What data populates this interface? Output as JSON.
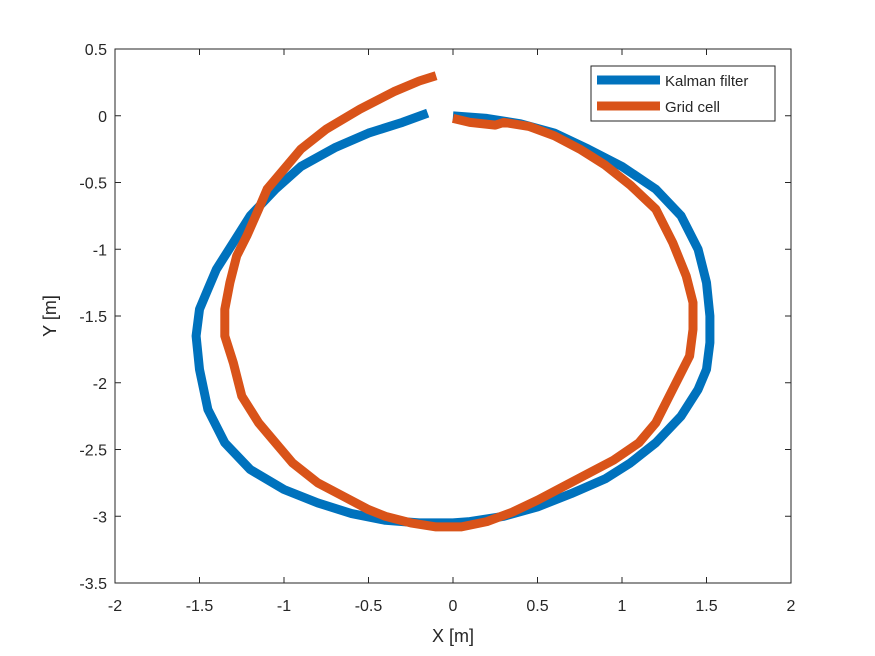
{
  "chart_data": {
    "type": "line",
    "xlabel": "X [m]",
    "ylabel": "Y [m]",
    "xlim": [
      -2,
      2
    ],
    "ylim": [
      -3.5,
      0.5
    ],
    "xticks": [
      "-2",
      "-1.5",
      "-1",
      "-0.5",
      "0",
      "0.5",
      "1",
      "1.5",
      "2"
    ],
    "yticks": [
      "0.5",
      "0",
      "-0.5",
      "-1",
      "-1.5",
      "-2",
      "-2.5",
      "-3",
      "-3.5"
    ],
    "grid": false,
    "legend_position": "top-right",
    "series": [
      {
        "name": "Kalman filter",
        "color": "#0072BD",
        "x": [
          0.0,
          0.2,
          0.4,
          0.6,
          0.8,
          1.0,
          1.2,
          1.35,
          1.45,
          1.5,
          1.52,
          1.52,
          1.5,
          1.45,
          1.35,
          1.2,
          1.05,
          0.9,
          0.7,
          0.5,
          0.3,
          0.1,
          0.0,
          -0.2,
          -0.4,
          -0.6,
          -0.8,
          -1.0,
          -1.2,
          -1.35,
          -1.45,
          -1.5,
          -1.52,
          -1.5,
          -1.45,
          -1.4,
          -1.3,
          -1.2,
          -1.05,
          -0.9,
          -0.7,
          -0.5,
          -0.3,
          -0.15
        ],
        "y": [
          0.0,
          -0.02,
          -0.06,
          -0.13,
          -0.25,
          -0.38,
          -0.55,
          -0.75,
          -1.0,
          -1.25,
          -1.5,
          -1.7,
          -1.9,
          -2.05,
          -2.25,
          -2.45,
          -2.6,
          -2.72,
          -2.83,
          -2.93,
          -3.0,
          -3.04,
          -3.05,
          -3.05,
          -3.03,
          -2.98,
          -2.9,
          -2.8,
          -2.65,
          -2.45,
          -2.2,
          -1.9,
          -1.65,
          -1.45,
          -1.3,
          -1.15,
          -0.95,
          -0.75,
          -0.55,
          -0.38,
          -0.24,
          -0.13,
          -0.05,
          0.02
        ]
      },
      {
        "name": "Grid cell",
        "color": "#D95319",
        "x": [
          0.0,
          0.1,
          0.25,
          0.3,
          0.45,
          0.6,
          0.75,
          0.9,
          1.05,
          1.2,
          1.3,
          1.38,
          1.42,
          1.42,
          1.4,
          1.3,
          1.2,
          1.1,
          0.95,
          0.8,
          0.65,
          0.5,
          0.35,
          0.2,
          0.05,
          -0.1,
          -0.25,
          -0.4,
          -0.5,
          -0.65,
          -0.8,
          -0.95,
          -1.05,
          -1.15,
          -1.25,
          -1.3,
          -1.35,
          -1.35,
          -1.32,
          -1.28,
          -1.22,
          -1.15,
          -1.1,
          -1.0,
          -0.9,
          -0.75,
          -0.55,
          -0.35,
          -0.2,
          -0.1
        ],
        "y": [
          -0.02,
          -0.05,
          -0.07,
          -0.05,
          -0.08,
          -0.15,
          -0.25,
          -0.37,
          -0.52,
          -0.7,
          -0.95,
          -1.2,
          -1.4,
          -1.6,
          -1.8,
          -2.05,
          -2.3,
          -2.45,
          -2.58,
          -2.68,
          -2.78,
          -2.88,
          -2.97,
          -3.04,
          -3.08,
          -3.08,
          -3.05,
          -3.0,
          -2.95,
          -2.85,
          -2.75,
          -2.6,
          -2.45,
          -2.3,
          -2.1,
          -1.85,
          -1.65,
          -1.45,
          -1.25,
          -1.05,
          -0.9,
          -0.7,
          -0.55,
          -0.4,
          -0.25,
          -0.1,
          0.05,
          0.18,
          0.26,
          0.3
        ]
      }
    ]
  }
}
